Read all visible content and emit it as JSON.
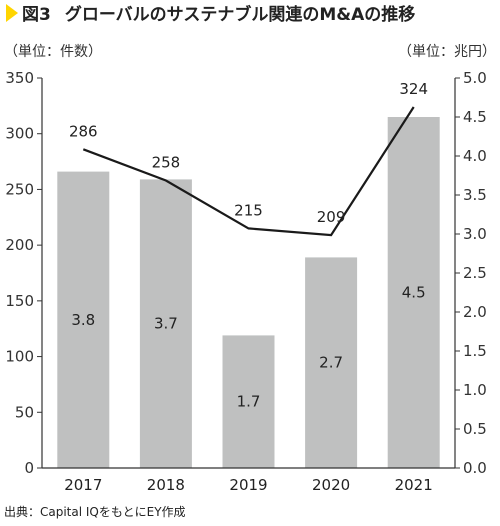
{
  "figure": {
    "number": "図3",
    "title": "グローバルのサステナブル関連のM&Aの推移",
    "source": "出典：Capital IQをもとにEY作成"
  },
  "colors": {
    "marker": "#FFD500",
    "bar": "#BFC0C0",
    "line": "#1A1A1A",
    "axis": "#333333"
  },
  "chart_data": {
    "type": "bar",
    "categories": [
      "2017",
      "2018",
      "2019",
      "2020",
      "2021"
    ],
    "left_axis": {
      "unit_label": "（単位：件数）",
      "ylim": [
        0,
        350
      ],
      "ticks": [
        "0",
        "50",
        "100",
        "150",
        "200",
        "250",
        "300",
        "350"
      ]
    },
    "right_axis": {
      "unit_label": "（単位：兆円）",
      "ylim": [
        0,
        5.0
      ],
      "ticks": [
        "0.0",
        "0.5",
        "1.0",
        "1.5",
        "2.0",
        "2.5",
        "3.0",
        "3.5",
        "4.0",
        "4.5",
        "5.0"
      ]
    },
    "series": [
      {
        "type": "bar",
        "axis": "right",
        "values": [
          3.8,
          3.7,
          1.7,
          2.7,
          4.5
        ],
        "labels": [
          "3.8",
          "3.7",
          "1.7",
          "2.7",
          "4.5"
        ]
      },
      {
        "type": "line",
        "axis": "left",
        "values": [
          286,
          258,
          215,
          209,
          324
        ],
        "labels": [
          "286",
          "258",
          "215",
          "209",
          "324"
        ]
      }
    ],
    "grid": false,
    "legend": "none"
  }
}
